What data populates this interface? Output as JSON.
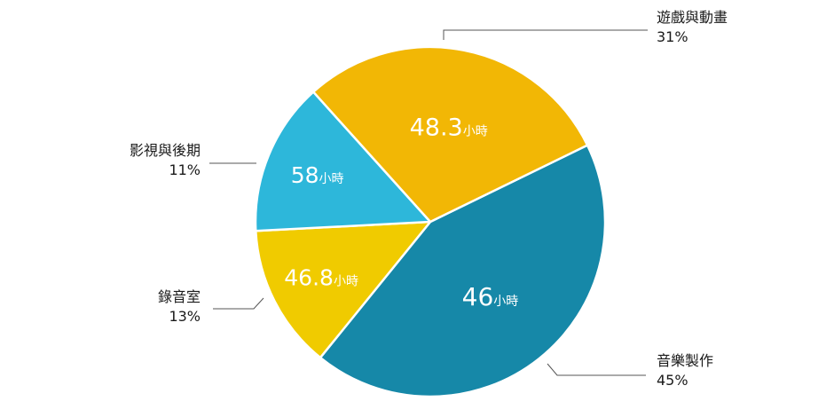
{
  "chart_data": {
    "type": "pie",
    "slices": [
      {
        "name": "音樂製作",
        "percent": "45%",
        "value": 46,
        "unit": "小時",
        "color": "#1688A8"
      },
      {
        "name": "錄音室",
        "percent": "13%",
        "value": 46.8,
        "unit": "小時",
        "color": "#F0CB00"
      },
      {
        "name": "影視與後期",
        "percent": "11%",
        "value": 58,
        "unit": "小時",
        "color": "#2DB7DA"
      },
      {
        "name": "遊戲與動畫",
        "percent": "31%",
        "value": 48.3,
        "unit": "小時",
        "color": "#F2B705"
      }
    ]
  }
}
